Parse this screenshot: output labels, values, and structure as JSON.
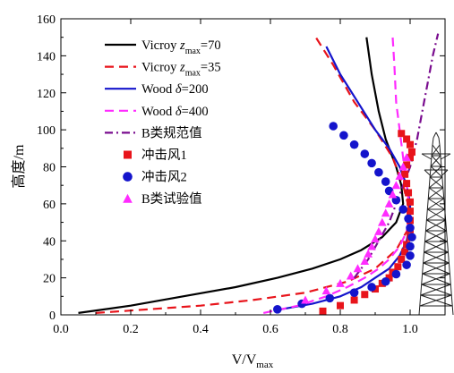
{
  "chart_data": {
    "type": "line",
    "title": "",
    "xlabel": {
      "main": "V/V",
      "sub": "max"
    },
    "ylabel": "高度/m",
    "xlim": [
      0.0,
      1.1
    ],
    "ylim": [
      0,
      160
    ],
    "x_ticks": [
      "0.0",
      "0.2",
      "0.4",
      "0.6",
      "0.8",
      "1.0"
    ],
    "x_tick_values": [
      0.0,
      0.2,
      0.4,
      0.6,
      0.8,
      1.0
    ],
    "y_ticks": [
      "0",
      "20",
      "40",
      "60",
      "80",
      "100",
      "120",
      "140",
      "160"
    ],
    "y_tick_values": [
      0,
      20,
      40,
      60,
      80,
      100,
      120,
      140,
      160
    ],
    "grid": false,
    "legend_position": "top-left",
    "series": [
      {
        "name": {
          "pre": "Vicroy ",
          "var": "z",
          "sub": "max",
          "post": "=70"
        },
        "kind": "line",
        "color": "#000000",
        "dash": "solid",
        "x": [
          0.05,
          0.2,
          0.35,
          0.5,
          0.62,
          0.72,
          0.8,
          0.86,
          0.92,
          0.96,
          0.98,
          0.975,
          0.96,
          0.93,
          0.91,
          0.89,
          0.875
        ],
        "y": [
          1,
          5,
          10,
          15,
          20,
          25,
          30,
          35,
          42,
          50,
          60,
          70,
          80,
          95,
          110,
          130,
          150
        ]
      },
      {
        "name": {
          "pre": "Vicroy ",
          "var": "z",
          "sub": "max",
          "post": "=35"
        },
        "kind": "line",
        "color": "#e8141b",
        "dash": "dashed",
        "x": [
          0.1,
          0.25,
          0.4,
          0.55,
          0.7,
          0.82,
          0.9,
          0.96,
          0.99,
          1.0,
          0.98,
          0.95,
          0.9,
          0.84,
          0.78,
          0.73
        ],
        "y": [
          1,
          3,
          5,
          8,
          12,
          18,
          25,
          35,
          45,
          55,
          70,
          85,
          100,
          115,
          135,
          150
        ]
      },
      {
        "name": {
          "pre": "Wood ",
          "var": "δ",
          "sub": "",
          "post": "=200"
        },
        "kind": "line",
        "color": "#1414cc",
        "dash": "solid",
        "x": [
          0.63,
          0.72,
          0.8,
          0.86,
          0.9,
          0.94,
          0.97,
          0.99,
          1.0,
          1.0,
          0.99,
          0.97,
          0.94,
          0.9,
          0.85,
          0.8,
          0.76
        ],
        "y": [
          3,
          6,
          10,
          15,
          20,
          25,
          32,
          40,
          50,
          60,
          70,
          80,
          90,
          100,
          115,
          130,
          145
        ]
      },
      {
        "name": {
          "pre": "Wood ",
          "var": "δ",
          "sub": "",
          "post": "=400"
        },
        "kind": "line",
        "color": "#ff2bff",
        "dash": "dashed",
        "x": [
          0.58,
          0.68,
          0.76,
          0.82,
          0.87,
          0.91,
          0.94,
          0.97,
          0.99,
          1.0,
          0.99,
          0.98,
          0.97,
          0.96,
          0.955,
          0.95
        ],
        "y": [
          1,
          5,
          10,
          15,
          20,
          25,
          30,
          37,
          45,
          55,
          70,
          85,
          100,
          115,
          135,
          150
        ]
      },
      {
        "name": {
          "pre": "B类规范值",
          "var": "",
          "sub": "",
          "post": ""
        },
        "kind": "line",
        "color": "#7a0d8f",
        "dash": "dashdot",
        "x": [
          0.84,
          0.88,
          0.91,
          0.94,
          0.96,
          0.98,
          1.0,
          1.02,
          1.035,
          1.05,
          1.065,
          1.08
        ],
        "y": [
          20,
          30,
          40,
          50,
          60,
          70,
          80,
          95,
          110,
          125,
          140,
          152
        ]
      },
      {
        "name": {
          "pre": "冲击风1",
          "var": "",
          "sub": "",
          "post": ""
        },
        "kind": "scatter",
        "marker": "square",
        "color": "#e8141b",
        "x": [
          0.75,
          0.8,
          0.84,
          0.87,
          0.9,
          0.92,
          0.94,
          0.95,
          0.965,
          0.975,
          0.985,
          0.99,
          1.0,
          1.0,
          1.0,
          1.0,
          1.0,
          0.995,
          0.99,
          0.985,
          0.99,
          1.0,
          1.005,
          1.0,
          0.99,
          0.975
        ],
        "y": [
          2,
          5,
          8,
          11,
          14,
          17,
          20,
          23,
          26,
          30,
          34,
          38,
          42,
          46,
          51,
          56,
          61,
          66,
          71,
          76,
          81,
          85,
          88,
          92,
          95,
          98
        ]
      },
      {
        "name": {
          "pre": "冲击风2",
          "var": "",
          "sub": "",
          "post": ""
        },
        "kind": "scatter",
        "marker": "circle",
        "color": "#1414cc",
        "x": [
          0.62,
          0.69,
          0.77,
          0.84,
          0.89,
          0.93,
          0.96,
          0.99,
          1.0,
          1.0,
          1.005,
          1.0,
          0.995,
          0.98,
          0.96,
          0.94,
          0.93,
          0.91,
          0.89,
          0.87,
          0.84,
          0.81,
          0.78
        ],
        "y": [
          3,
          6,
          9,
          12,
          15,
          18,
          22,
          27,
          32,
          37,
          42,
          47,
          52,
          57,
          62,
          67,
          72,
          77,
          82,
          87,
          92,
          97,
          102
        ]
      },
      {
        "name": {
          "pre": "B类试验值",
          "var": "",
          "sub": "",
          "post": ""
        },
        "kind": "scatter",
        "marker": "triangle",
        "color": "#ff2bff",
        "x": [
          0.7,
          0.76,
          0.8,
          0.83,
          0.85,
          0.87,
          0.88,
          0.89,
          0.9,
          0.91,
          0.92,
          0.93,
          0.94,
          0.95,
          0.96,
          0.97,
          0.98,
          0.99
        ],
        "y": [
          8,
          13,
          17,
          21,
          25,
          29,
          33,
          37,
          41,
          45,
          50,
          55,
          60,
          65,
          70,
          75,
          80,
          85
        ]
      }
    ]
  }
}
